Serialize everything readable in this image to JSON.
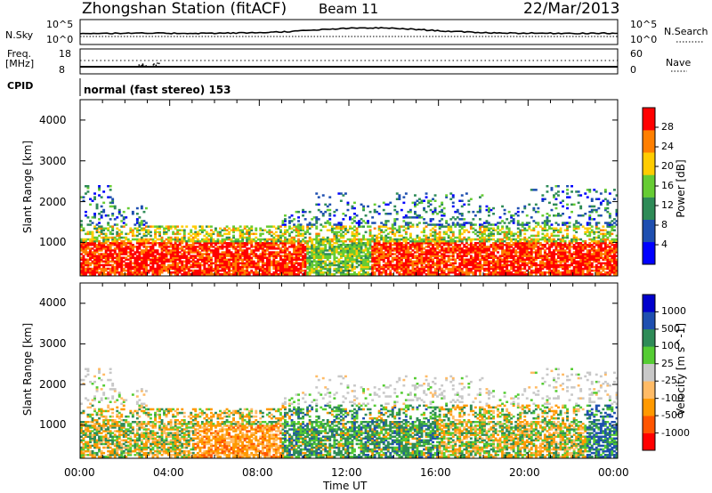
{
  "header": {
    "station": "Zhongshan Station (fitACF)",
    "beam": "Beam 11",
    "date": "22/Mar/2013"
  },
  "strips": {
    "nsky_label": "N.Sky",
    "nsky_ticks": [
      "10^5",
      "10^0"
    ],
    "nsearch_label": "N.Search",
    "nsearch_ticks": [
      "10^5",
      "10^0"
    ],
    "freq_label_1": "Freq.",
    "freq_label_2": "[MHz]",
    "freq_ticks": [
      "18",
      "8"
    ],
    "nave_label": "Nave",
    "nave_ticks": [
      "60",
      "0"
    ],
    "cpid_label": "CPID",
    "cpid_text": "normal (fast stereo) 153"
  },
  "chart_data": [
    {
      "type": "heatmap",
      "name": "power-panel",
      "ylabel": "Slant Range [km]",
      "ylim": [
        180,
        4500
      ],
      "y_ticks": [
        "4000",
        "3000",
        "2000",
        "1000"
      ],
      "xlim_hours": [
        0,
        24
      ],
      "colorbar": {
        "label": "Power [dB]",
        "ticks": [
          "28",
          "24",
          "20",
          "16",
          "12",
          "8",
          "4"
        ],
        "colors": [
          "#0000ff",
          "#1e4fb0",
          "#2e8b57",
          "#66cc33",
          "#ffcc00",
          "#ff7f00",
          "#ff0000"
        ]
      },
      "note_estimated": "backscatter mainly between 300 and 1500 km, with patches up to 2500 km"
    },
    {
      "type": "heatmap",
      "name": "velocity-panel",
      "ylabel": "Slant Range [km]",
      "ylim": [
        180,
        4500
      ],
      "y_ticks": [
        "4000",
        "3000",
        "2000",
        "1000"
      ],
      "xlim_hours": [
        0,
        24
      ],
      "x_ticks": [
        "00:00",
        "04:00",
        "08:00",
        "12:00",
        "16:00",
        "20:00",
        "00:00"
      ],
      "xlabel": "Time UT",
      "colorbar": {
        "label": "Velocity [m s^-1]",
        "ticks": [
          "1000",
          "500",
          "100",
          "25",
          "-25",
          "-100",
          "-500",
          "-1000"
        ],
        "colors": [
          "#ff0000",
          "#ff5500",
          "#ff9900",
          "#ffbb66",
          "#c8c8c8",
          "#55cc33",
          "#2e8b57",
          "#1e4fb0",
          "#0000cc"
        ]
      }
    }
  ]
}
